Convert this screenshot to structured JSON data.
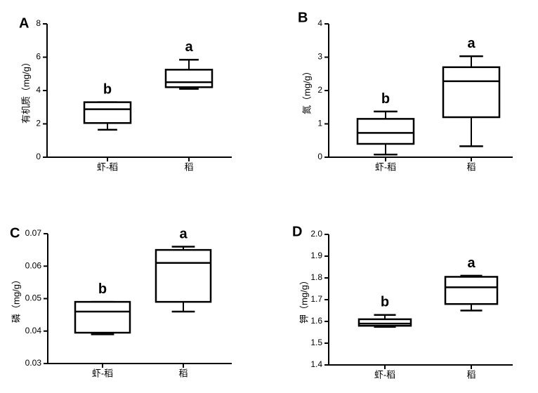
{
  "chart_data": [
    {
      "type": "boxplot",
      "panel": "A",
      "ylabel": "有机质（mg/g）",
      "ylim": [
        0,
        8
      ],
      "yticks": [
        "0",
        "2",
        "4",
        "6",
        "8"
      ],
      "categories": [
        "虾-稻",
        "稻"
      ],
      "boxes": [
        {
          "category": "虾-稻",
          "min": 1.65,
          "q1": 2.05,
          "median": 2.88,
          "q3": 3.3,
          "max": 3.3,
          "label": "b"
        },
        {
          "category": "稻",
          "min": 4.1,
          "q1": 4.2,
          "median": 4.5,
          "q3": 5.25,
          "max": 5.85,
          "label": "a"
        }
      ]
    },
    {
      "type": "boxplot",
      "panel": "B",
      "ylabel": "氮（mg/g）",
      "ylim": [
        0,
        4
      ],
      "yticks": [
        "0",
        "1",
        "2",
        "3",
        "4"
      ],
      "categories": [
        "虾-稻",
        "稻"
      ],
      "boxes": [
        {
          "category": "虾-稻",
          "min": 0.08,
          "q1": 0.4,
          "median": 0.73,
          "q3": 1.15,
          "max": 1.37,
          "label": "b"
        },
        {
          "category": "稻",
          "min": 0.33,
          "q1": 1.2,
          "median": 2.28,
          "q3": 2.7,
          "max": 3.03,
          "label": "a"
        }
      ]
    },
    {
      "type": "boxplot",
      "panel": "C",
      "ylabel": "磷（mg/g）",
      "ylim": [
        0.03,
        0.07
      ],
      "yticks": [
        "0.03",
        "0.04",
        "0.05",
        "0.06",
        "0.07"
      ],
      "categories": [
        "虾-稻",
        "稻"
      ],
      "boxes": [
        {
          "category": "虾-稻",
          "min": 0.039,
          "q1": 0.0395,
          "median": 0.046,
          "q3": 0.049,
          "max": 0.049,
          "label": "b"
        },
        {
          "category": "稻",
          "min": 0.046,
          "q1": 0.049,
          "median": 0.061,
          "q3": 0.065,
          "max": 0.066,
          "label": "a"
        }
      ]
    },
    {
      "type": "boxplot",
      "panel": "D",
      "ylabel": "钾（mg/g）",
      "ylim": [
        1.4,
        2.0
      ],
      "yticks": [
        "1.4",
        "1.5",
        "1.6",
        "1.7",
        "1.8",
        "1.9",
        "2.0"
      ],
      "categories": [
        "虾-稻",
        "稻"
      ],
      "boxes": [
        {
          "category": "虾-稻",
          "min": 1.575,
          "q1": 1.58,
          "median": 1.59,
          "q3": 1.61,
          "max": 1.63,
          "label": "b"
        },
        {
          "category": "稻",
          "min": 1.65,
          "q1": 1.68,
          "median": 1.757,
          "q3": 1.805,
          "max": 1.81,
          "label": "a"
        }
      ]
    }
  ]
}
